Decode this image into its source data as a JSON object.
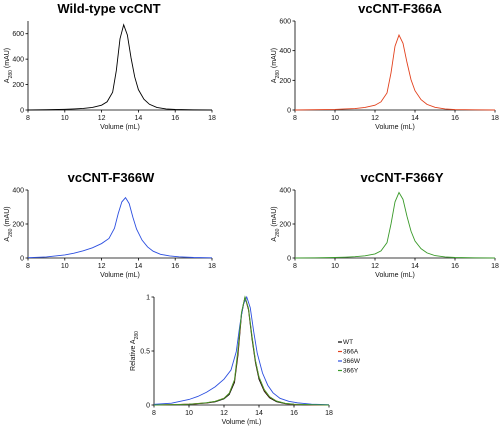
{
  "chart_data": [
    {
      "type": "line",
      "title": "Wild-type vcCNT",
      "xlabel": "Volume (mL)",
      "ylabel": "A280 (mAU)",
      "xlim": [
        8,
        18
      ],
      "ylim": [
        0,
        700
      ],
      "xticks": [
        "8",
        "10",
        "12",
        "14",
        "16",
        "18"
      ],
      "yticks": [
        "0",
        "200",
        "400",
        "600"
      ],
      "series": [
        {
          "color": "#000000",
          "x": [
            8,
            9,
            10,
            10.5,
            11,
            11.5,
            12,
            12.3,
            12.6,
            12.8,
            13.0,
            13.2,
            13.4,
            13.6,
            13.8,
            14.0,
            14.3,
            14.6,
            15.0,
            15.5,
            16,
            17,
            18
          ],
          "y": [
            0,
            2,
            5,
            8,
            12,
            20,
            38,
            65,
            140,
            310,
            560,
            670,
            590,
            410,
            260,
            160,
            85,
            45,
            20,
            8,
            4,
            1,
            0
          ]
        }
      ]
    },
    {
      "type": "line",
      "title": "vcCNT-F366A",
      "xlabel": "Volume (mL)",
      "ylabel": "A280 (mAU)",
      "xlim": [
        8,
        18
      ],
      "ylim": [
        0,
        600
      ],
      "xticks": [
        "8",
        "10",
        "12",
        "14",
        "16",
        "18"
      ],
      "yticks": [
        "0",
        "200",
        "400",
        "600"
      ],
      "series": [
        {
          "color": "#e2401c",
          "x": [
            8,
            9,
            10,
            10.5,
            11,
            11.5,
            12,
            12.3,
            12.6,
            12.8,
            13.0,
            13.2,
            13.4,
            13.6,
            13.8,
            14.0,
            14.3,
            14.6,
            15.0,
            15.5,
            16,
            17,
            18
          ],
          "y": [
            0,
            2,
            4,
            7,
            10,
            17,
            32,
            55,
            115,
            250,
            430,
            505,
            450,
            320,
            205,
            130,
            70,
            38,
            18,
            7,
            3,
            1,
            0
          ]
        }
      ]
    },
    {
      "type": "line",
      "title": "vcCNT-F366W",
      "xlabel": "Volume (mL)",
      "ylabel": "A280 (mAU)",
      "xlim": [
        8,
        18
      ],
      "ylim": [
        0,
        400
      ],
      "xticks": [
        "8",
        "10",
        "12",
        "14",
        "16",
        "18"
      ],
      "yticks": [
        "0",
        "200",
        "400"
      ],
      "series": [
        {
          "color": "#2c4fe0",
          "x": [
            8,
            9,
            10,
            10.5,
            11,
            11.5,
            12,
            12.4,
            12.7,
            12.9,
            13.1,
            13.3,
            13.5,
            13.7,
            13.9,
            14.2,
            14.5,
            14.8,
            15.2,
            15.7,
            16.2,
            17,
            18
          ],
          "y": [
            2,
            6,
            18,
            28,
            42,
            60,
            85,
            115,
            175,
            260,
            330,
            355,
            320,
            240,
            170,
            105,
            65,
            40,
            22,
            12,
            7,
            3,
            1
          ]
        }
      ]
    },
    {
      "type": "line",
      "title": "vcCNT-F366Y",
      "xlabel": "Volume (mL)",
      "ylabel": "A280 (mAU)",
      "xlim": [
        8,
        18
      ],
      "ylim": [
        0,
        400
      ],
      "xticks": [
        "8",
        "10",
        "12",
        "14",
        "16",
        "18"
      ],
      "yticks": [
        "0",
        "200",
        "400"
      ],
      "series": [
        {
          "color": "#3a9a2a",
          "x": [
            8,
            9,
            10,
            10.5,
            11,
            11.5,
            12,
            12.3,
            12.6,
            12.8,
            13.0,
            13.2,
            13.4,
            13.6,
            13.8,
            14.0,
            14.3,
            14.6,
            15.0,
            15.5,
            16,
            17,
            18
          ],
          "y": [
            0,
            1,
            3,
            5,
            8,
            13,
            24,
            42,
            90,
            200,
            330,
            385,
            345,
            245,
            158,
            100,
            55,
            30,
            14,
            6,
            3,
            1,
            0
          ]
        }
      ]
    },
    {
      "type": "line",
      "title": "",
      "xlabel": "Volume (mL)",
      "ylabel": "Relative A280",
      "xlim": [
        8,
        18
      ],
      "ylim": [
        0,
        1
      ],
      "xticks": [
        "8",
        "10",
        "12",
        "14",
        "16",
        "18"
      ],
      "yticks": [
        "0",
        "0.5",
        "1"
      ],
      "legend": {
        "position": "right",
        "entries": [
          "WT",
          "366A",
          "366W",
          "366Y"
        ]
      },
      "series": [
        {
          "name": "WT",
          "color": "#000000",
          "x": [
            8,
            9,
            10,
            10.5,
            11,
            11.5,
            12,
            12.3,
            12.6,
            12.8,
            13.0,
            13.2,
            13.4,
            13.6,
            13.8,
            14.0,
            14.3,
            14.6,
            15.0,
            15.5,
            16,
            17,
            18
          ],
          "y": [
            0,
            0.003,
            0.007,
            0.012,
            0.018,
            0.03,
            0.057,
            0.097,
            0.209,
            0.463,
            0.836,
            1.0,
            0.881,
            0.612,
            0.388,
            0.239,
            0.127,
            0.067,
            0.03,
            0.012,
            0.006,
            0.001,
            0
          ]
        },
        {
          "name": "366A",
          "color": "#e2401c",
          "x": [
            8,
            9,
            10,
            10.5,
            11,
            11.5,
            12,
            12.3,
            12.6,
            12.8,
            13.0,
            13.2,
            13.4,
            13.6,
            13.8,
            14.0,
            14.3,
            14.6,
            15.0,
            15.5,
            16,
            17,
            18
          ],
          "y": [
            0,
            0.004,
            0.008,
            0.014,
            0.02,
            0.034,
            0.063,
            0.109,
            0.228,
            0.495,
            0.851,
            1.0,
            0.891,
            0.634,
            0.406,
            0.257,
            0.139,
            0.075,
            0.036,
            0.014,
            0.006,
            0.002,
            0
          ]
        },
        {
          "name": "366W",
          "color": "#2c4fe0",
          "x": [
            8,
            9,
            10,
            10.5,
            11,
            11.5,
            12,
            12.4,
            12.7,
            12.9,
            13.1,
            13.3,
            13.5,
            13.7,
            13.9,
            14.2,
            14.5,
            14.8,
            15.2,
            15.7,
            16.2,
            17,
            18
          ],
          "y": [
            0.006,
            0.017,
            0.051,
            0.079,
            0.118,
            0.169,
            0.239,
            0.324,
            0.493,
            0.732,
            0.93,
            1.0,
            0.901,
            0.676,
            0.479,
            0.296,
            0.183,
            0.113,
            0.062,
            0.034,
            0.02,
            0.008,
            0.003
          ]
        },
        {
          "name": "366Y",
          "color": "#3a9a2a",
          "x": [
            8,
            9,
            10,
            10.5,
            11,
            11.5,
            12,
            12.3,
            12.6,
            12.8,
            13.0,
            13.2,
            13.4,
            13.6,
            13.8,
            14.0,
            14.3,
            14.6,
            15.0,
            15.5,
            16,
            17,
            18
          ],
          "y": [
            0,
            0.003,
            0.008,
            0.013,
            0.021,
            0.034,
            0.062,
            0.109,
            0.234,
            0.519,
            0.857,
            1.0,
            0.896,
            0.636,
            0.41,
            0.26,
            0.143,
            0.078,
            0.036,
            0.016,
            0.008,
            0.003,
            0
          ]
        }
      ]
    }
  ]
}
